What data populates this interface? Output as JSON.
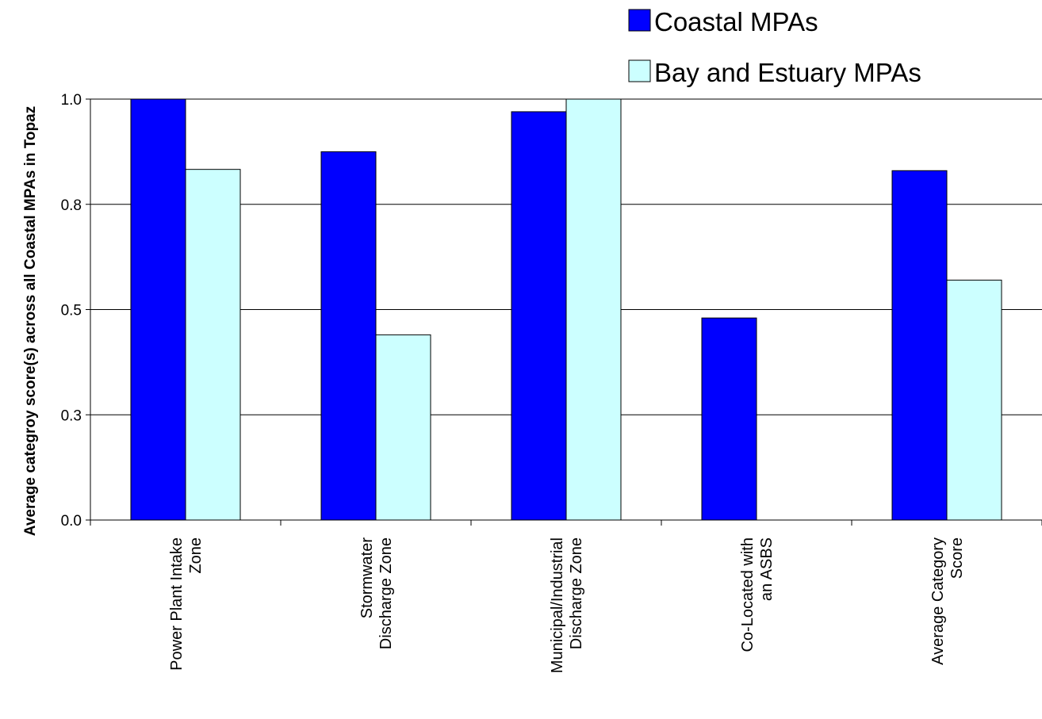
{
  "chart_data": {
    "type": "bar",
    "title": "",
    "xlabel": "",
    "ylabel": "Average categroy score(s) across all Coastal MPAs in Topaz",
    "ylim": [
      0,
      1
    ],
    "yticks": [
      0,
      0.25,
      0.5,
      0.75,
      1.0
    ],
    "ytick_labels": [
      "0.0",
      "0.3",
      "0.5",
      "0.8",
      "1.0"
    ],
    "grid": true,
    "legend_position": "top-right",
    "categories": [
      [
        "Power Plant Intake",
        "Zone"
      ],
      [
        "Stormwater",
        "Discharge Zone"
      ],
      [
        "Municipal/Industrial",
        "Discharge Zone"
      ],
      [
        "Co-Located with",
        "an ASBS"
      ],
      [
        "Average Category",
        "Score"
      ]
    ],
    "series": [
      {
        "name": "Coastal MPAs",
        "color": "#0000ff",
        "values": [
          1.0,
          0.875,
          0.97,
          0.48,
          0.83
        ]
      },
      {
        "name": "Bay and Estuary MPAs",
        "color": "#ccffff",
        "values": [
          0.833,
          0.44,
          1.0,
          0.0,
          0.57
        ]
      }
    ]
  }
}
